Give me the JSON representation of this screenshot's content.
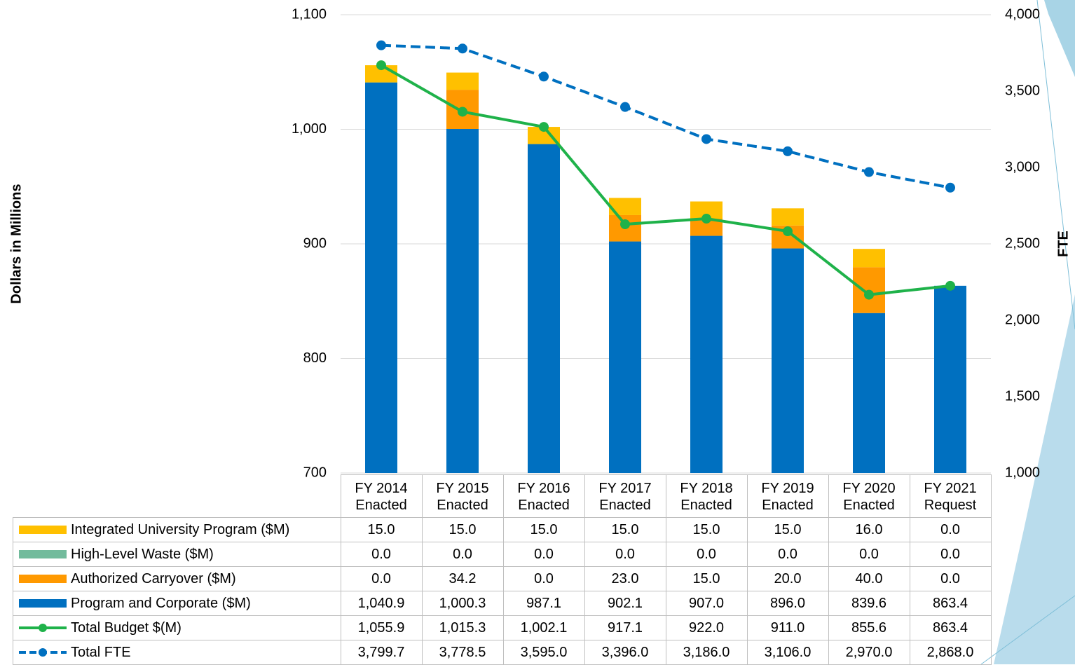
{
  "chart_data": {
    "type": "bar",
    "categories": [
      "FY 2014 Enacted",
      "FY 2015 Enacted",
      "FY 2016 Enacted",
      "FY 2017 Enacted",
      "FY 2018 Enacted",
      "FY 2019 Enacted",
      "FY 2020 Enacted",
      "FY 2021 Request"
    ],
    "y_label": "Dollars in Millions",
    "y2_label": "FTE",
    "ylim": [
      700,
      1100
    ],
    "yticks": [
      700,
      800,
      900,
      {
        "value": 1000,
        "label": "1,000"
      },
      {
        "value": 1100,
        "label": "1,100"
      }
    ],
    "y2lim": [
      1000,
      4000
    ],
    "y2ticks": [
      {
        "value": 1000,
        "label": "1,000"
      },
      {
        "value": 1500,
        "label": "1,500"
      },
      {
        "value": 2000,
        "label": "2,000"
      },
      {
        "value": 2500,
        "label": "2,500"
      },
      {
        "value": 3000,
        "label": "3,000"
      },
      {
        "value": 3500,
        "label": "3,500"
      },
      {
        "value": 4000,
        "label": "4,000"
      }
    ],
    "grid": true,
    "series": [
      {
        "name": "Integrated University Program ($M)",
        "type": "bar",
        "color": "#ffc000",
        "values": [
          15,
          15,
          15,
          15,
          15,
          15,
          16,
          0
        ],
        "value_labels": [
          "15.0",
          "15.0",
          "15.0",
          "15.0",
          "15.0",
          "15.0",
          "16.0",
          "0.0"
        ]
      },
      {
        "name": "High-Level Waste ($M)",
        "type": "bar",
        "color": "#72bb9c",
        "values": [
          0,
          0,
          0,
          0,
          0,
          0,
          0,
          0
        ],
        "value_labels": [
          "0.0",
          "0.0",
          "0.0",
          "0.0",
          "0.0",
          "0.0",
          "0.0",
          "0.0"
        ]
      },
      {
        "name": "Authorized Carryover ($M)",
        "type": "bar",
        "color": "#ff9900",
        "values": [
          0,
          34.2,
          0,
          23,
          15,
          20,
          40,
          0
        ],
        "value_labels": [
          "0.0",
          "34.2",
          "0.0",
          "23.0",
          "15.0",
          "20.0",
          "40.0",
          "0.0"
        ]
      },
      {
        "name": "Program and Corporate ($M)",
        "type": "bar",
        "color": "#0070c0",
        "values": [
          1040.9,
          1000.3,
          987.1,
          902.1,
          907,
          896,
          839.6,
          863.4
        ],
        "value_labels": [
          "1,040.9",
          "1,000.3",
          "987.1",
          "902.1",
          "907.0",
          "896.0",
          "839.6",
          "863.4"
        ]
      },
      {
        "name": "Total Budget $(M)",
        "type": "line",
        "color": "#1fb24a",
        "values": [
          1055.9,
          1015.3,
          1002.1,
          917.1,
          922,
          911,
          855.6,
          863.4
        ],
        "value_labels": [
          "1,055.9",
          "1,015.3",
          "1,002.1",
          "917.1",
          "922.0",
          "911.0",
          "855.6",
          "863.4"
        ]
      },
      {
        "name": "Total FTE",
        "type": "line",
        "axis": "y2",
        "dashed": true,
        "color": "#0070c0",
        "values": [
          3799.7,
          3778.5,
          3595,
          3396,
          3186,
          3106,
          2970,
          2868
        ],
        "value_labels": [
          "3,799.7",
          "3,778.5",
          "3,595.0",
          "3,396.0",
          "3,186.0",
          "3,106.0",
          "2,970.0",
          "2,868.0"
        ]
      }
    ]
  }
}
